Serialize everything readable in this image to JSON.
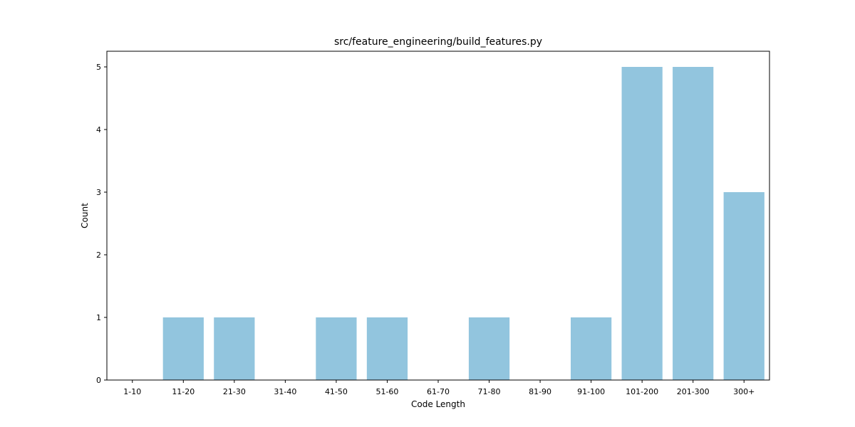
{
  "chart_data": {
    "type": "bar",
    "title": "src/feature_engineering/build_features.py",
    "xlabel": "Code Length",
    "ylabel": "Count",
    "categories": [
      "1-10",
      "11-20",
      "21-30",
      "31-40",
      "41-50",
      "51-60",
      "61-70",
      "71-80",
      "81-90",
      "91-100",
      "101-200",
      "201-300",
      "300+"
    ],
    "values": [
      0,
      1,
      1,
      0,
      1,
      1,
      0,
      1,
      0,
      1,
      5,
      5,
      3
    ],
    "ylim": [
      0,
      5.25
    ],
    "yticks": [
      0,
      1,
      2,
      3,
      4,
      5
    ],
    "grid": false,
    "legend": "none",
    "bar_color": "#92c5de"
  }
}
